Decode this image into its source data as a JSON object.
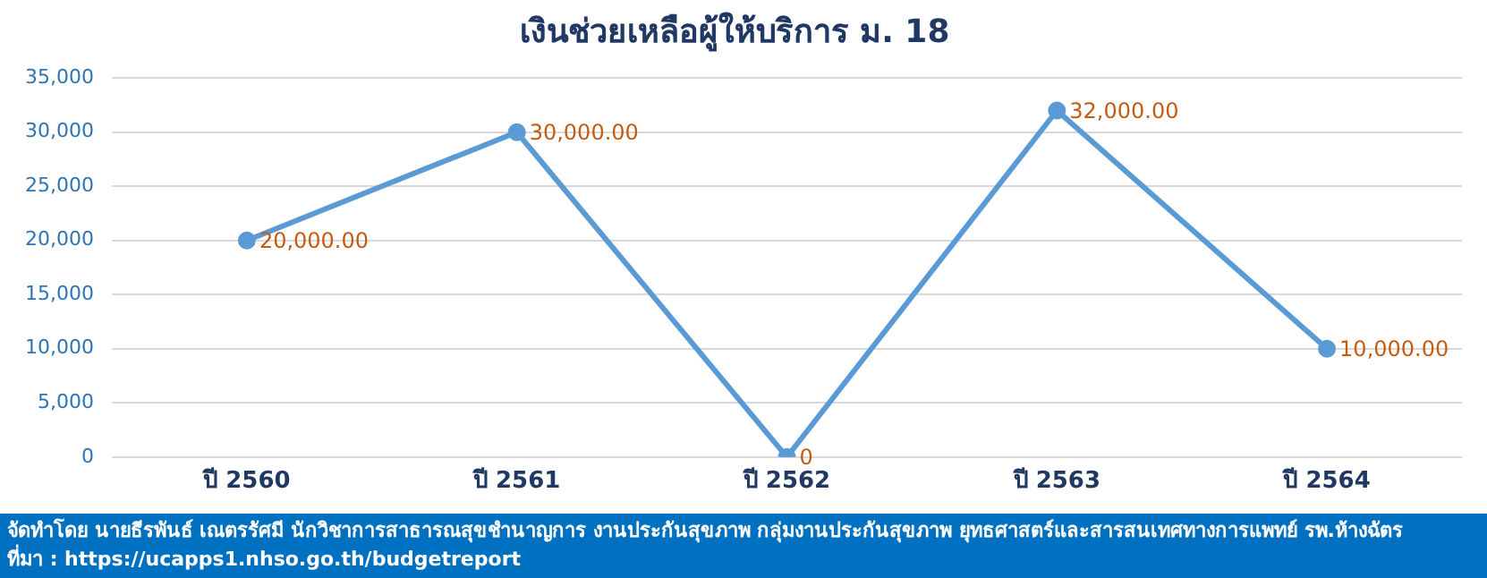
{
  "chart_data": {
    "type": "line",
    "title": "เงินช่วยเหลือผู้ให้บริการ ม. 18",
    "categories": [
      "ปี 2560",
      "ปี 2561",
      "ปี 2562",
      "ปี 2563",
      "ปี 2564"
    ],
    "series": [
      {
        "color": "#5b9bd5",
        "values": [
          20000,
          30000,
          0,
          32000,
          10000
        ],
        "value_labels": [
          "20,000.00",
          "30,000.00",
          "0",
          "32,000.00",
          "10,000.00"
        ]
      }
    ],
    "ylim": [
      0,
      35000
    ],
    "yticks": [
      {
        "value": 0,
        "label": "0"
      },
      {
        "value": 5000,
        "label": "5,000"
      },
      {
        "value": 10000,
        "label": "10,000"
      },
      {
        "value": 15000,
        "label": "15,000"
      },
      {
        "value": 20000,
        "label": "20,000"
      },
      {
        "value": 25000,
        "label": "25,000"
      },
      {
        "value": 30000,
        "label": "30,000"
      },
      {
        "value": 35000,
        "label": "35,000"
      }
    ],
    "grid": "y",
    "legend": false,
    "marker": "circle",
    "line_style": "solid",
    "annotations": [
      "จัดทำโดย นายธีรพันธ์ เณตรรัศมี นักวิชาการสาธารณสุขชำนาญการ งานประกันสุขภาพ กลุ่มงานประกันสุขภาพ ยุทธศาสตร์และสารสนเทศทางการแพทย์ รพ.ห้างฉัตร",
      "ที่มา : https://ucapps1.nhso.go.th/budgetreport"
    ]
  }
}
